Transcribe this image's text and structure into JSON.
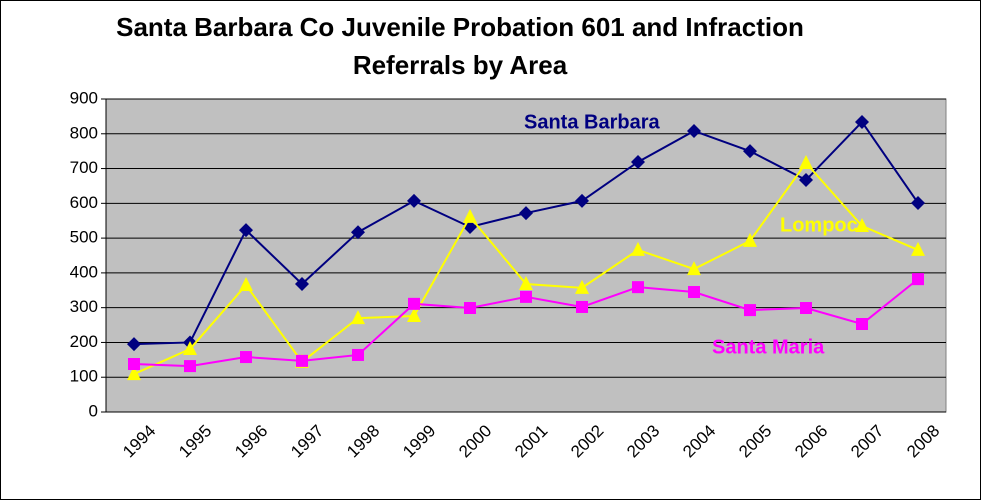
{
  "chart_data": {
    "type": "line",
    "title": "Santa Barbara Co Juvenile Probation 601 and Infraction Referrals by Area",
    "categories": [
      "1994",
      "1995",
      "1996",
      "1997",
      "1998",
      "1999",
      "2000",
      "2001",
      "2002",
      "2003",
      "2004",
      "2005",
      "2006",
      "2007",
      "2008"
    ],
    "series": [
      {
        "name": "Santa Barbara",
        "color": "#000080",
        "marker": "diamond",
        "values": [
          195,
          200,
          523,
          368,
          517,
          607,
          532,
          572,
          607,
          719,
          808,
          750,
          667,
          834,
          601
        ]
      },
      {
        "name": "Lompoc",
        "color": "#ffff00",
        "marker": "triangle",
        "values": [
          109,
          181,
          365,
          144,
          270,
          276,
          561,
          368,
          357,
          466,
          411,
          492,
          716,
          535,
          466
        ]
      },
      {
        "name": "Santa Maria",
        "color": "#ff00ff",
        "marker": "square",
        "values": [
          138,
          132,
          158,
          147,
          164,
          311,
          299,
          331,
          302,
          359,
          345,
          293,
          299,
          253,
          382
        ]
      }
    ],
    "ylim": [
      0,
      900
    ],
    "yticks": [
      0,
      100,
      200,
      300,
      400,
      500,
      600,
      700,
      800,
      900
    ],
    "grid": true
  }
}
